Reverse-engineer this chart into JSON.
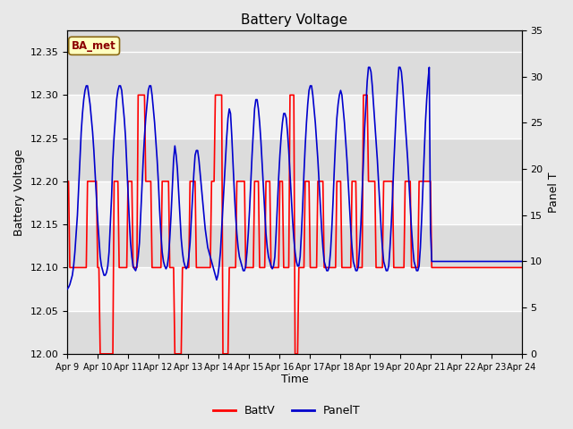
{
  "title": "Battery Voltage",
  "xlabel": "Time",
  "ylabel_left": "Battery Voltage",
  "ylabel_right": "Panel T",
  "ylim_left": [
    12.0,
    12.375
  ],
  "ylim_right": [
    0,
    35
  ],
  "yticks_left": [
    12.0,
    12.05,
    12.1,
    12.15,
    12.2,
    12.25,
    12.3,
    12.35
  ],
  "yticks_right": [
    0,
    5,
    10,
    15,
    20,
    25,
    30,
    35
  ],
  "xtick_labels": [
    "Apr 9",
    "Apr 10",
    "Apr 11",
    "Apr 12",
    "Apr 13",
    "Apr 14",
    "Apr 15",
    "Apr 16",
    "Apr 17",
    "Apr 18",
    "Apr 19",
    "Apr 20",
    "Apr 21",
    "Apr 22",
    "Apr 23",
    "Apr 24"
  ],
  "annotation_text": "BA_met",
  "annotation_color": "#8B0000",
  "annotation_bg": "#FFFFC0",
  "bg_color": "#E8E8E8",
  "plot_bg_light": "#F0F0F0",
  "plot_bg_dark": "#DCDCDC",
  "grid_color": "#FFFFFF",
  "batt_color": "#FF0000",
  "panel_color": "#0000CD",
  "legend_batt": "BattV",
  "legend_panel": "PanelT",
  "batt_v": [
    12.2,
    12.2,
    12.1,
    12.1,
    12.1,
    12.1,
    12.1,
    12.1,
    12.1,
    12.1,
    12.1,
    12.1,
    12.1,
    12.1,
    12.1,
    12.1,
    12.2,
    12.2,
    12.2,
    12.2,
    12.2,
    12.2,
    12.2,
    12.2,
    12.1,
    12.1,
    12.0,
    12.0,
    12.0,
    12.0,
    12.0,
    12.0,
    12.0,
    12.0,
    12.0,
    12.0,
    12.0,
    12.2,
    12.2,
    12.2,
    12.2,
    12.1,
    12.1,
    12.1,
    12.1,
    12.1,
    12.1,
    12.1,
    12.2,
    12.2,
    12.2,
    12.2,
    12.1,
    12.1,
    12.1,
    12.1,
    12.3,
    12.3,
    12.3,
    12.3,
    12.3,
    12.3,
    12.2,
    12.2,
    12.2,
    12.2,
    12.2,
    12.1,
    12.1,
    12.1,
    12.1,
    12.1,
    12.1,
    12.1,
    12.1,
    12.2,
    12.2,
    12.2,
    12.2,
    12.2,
    12.2,
    12.1,
    12.1,
    12.1,
    12.1,
    12.0,
    12.0,
    12.0,
    12.0,
    12.0,
    12.0,
    12.1,
    12.1,
    12.1,
    12.1,
    12.1,
    12.1,
    12.2,
    12.2,
    12.2,
    12.2,
    12.2,
    12.1,
    12.1,
    12.1,
    12.1,
    12.1,
    12.1,
    12.1,
    12.1,
    12.1,
    12.1,
    12.1,
    12.1,
    12.2,
    12.2,
    12.2,
    12.3,
    12.3,
    12.3,
    12.3,
    12.3,
    12.3,
    12.0,
    12.0,
    12.0,
    12.0,
    12.0,
    12.1,
    12.1,
    12.1,
    12.1,
    12.1,
    12.1,
    12.2,
    12.2,
    12.2,
    12.2,
    12.2,
    12.2,
    12.2,
    12.1,
    12.1,
    12.1,
    12.1,
    12.1,
    12.1,
    12.1,
    12.2,
    12.2,
    12.2,
    12.2,
    12.1,
    12.1,
    12.1,
    12.1,
    12.1,
    12.2,
    12.2,
    12.2,
    12.2,
    12.1,
    12.1,
    12.1,
    12.1,
    12.1,
    12.1,
    12.1,
    12.2,
    12.2,
    12.2,
    12.1,
    12.1,
    12.1,
    12.1,
    12.1,
    12.3,
    12.3,
    12.3,
    12.3,
    12.0,
    12.0,
    12.0,
    12.1,
    12.1,
    12.1,
    12.1,
    12.1,
    12.2,
    12.2,
    12.2,
    12.2,
    12.1,
    12.1,
    12.1,
    12.1,
    12.1,
    12.1,
    12.2,
    12.2,
    12.2,
    12.2,
    12.2,
    12.1,
    12.1,
    12.1,
    12.1,
    12.1,
    12.1,
    12.1,
    12.1,
    12.1,
    12.1,
    12.2,
    12.2,
    12.2,
    12.2,
    12.1,
    12.1,
    12.1,
    12.1,
    12.1,
    12.1,
    12.1,
    12.1,
    12.2,
    12.2,
    12.2,
    12.2,
    12.1,
    12.1,
    12.1,
    12.1,
    12.1,
    12.3,
    12.3,
    12.3,
    12.3,
    12.2,
    12.2,
    12.2,
    12.2,
    12.2,
    12.2,
    12.1,
    12.1,
    12.1,
    12.1,
    12.1,
    12.1,
    12.2,
    12.2,
    12.2,
    12.2,
    12.2,
    12.2,
    12.2,
    12.2,
    12.1,
    12.1,
    12.1,
    12.1,
    12.1,
    12.1,
    12.1,
    12.1,
    12.1,
    12.2,
    12.2,
    12.2,
    12.2,
    12.2,
    12.1,
    12.1,
    12.1,
    12.1,
    12.1,
    12.1,
    12.2,
    12.2,
    12.2,
    12.2,
    12.2,
    12.2,
    12.2,
    12.2,
    12.2,
    12.2
  ],
  "panel_t": [
    7.0,
    7.2,
    7.5,
    8.0,
    8.5,
    9.5,
    11.0,
    13.0,
    15.0,
    18.0,
    21.0,
    24.0,
    26.0,
    27.5,
    28.5,
    29.0,
    29.0,
    28.0,
    27.0,
    25.5,
    24.0,
    22.0,
    19.5,
    17.0,
    14.5,
    12.5,
    10.5,
    9.5,
    9.0,
    8.5,
    8.5,
    8.8,
    9.5,
    11.0,
    14.0,
    17.0,
    21.0,
    23.5,
    25.5,
    27.5,
    28.5,
    29.0,
    29.0,
    28.5,
    27.0,
    25.5,
    23.5,
    20.5,
    17.5,
    14.5,
    12.0,
    10.5,
    9.5,
    9.2,
    9.0,
    9.5,
    10.5,
    12.0,
    15.0,
    18.0,
    21.0,
    23.5,
    25.5,
    27.0,
    28.5,
    29.0,
    29.0,
    28.0,
    26.5,
    25.0,
    23.0,
    21.0,
    18.5,
    15.5,
    13.0,
    11.0,
    10.0,
    9.5,
    9.2,
    9.5,
    10.5,
    12.5,
    15.0,
    18.0,
    21.0,
    22.5,
    21.5,
    20.0,
    17.5,
    15.0,
    12.5,
    11.0,
    10.0,
    9.5,
    9.2,
    9.5,
    10.5,
    12.0,
    14.5,
    17.0,
    19.5,
    21.5,
    22.0,
    22.0,
    21.0,
    19.5,
    18.0,
    16.5,
    15.0,
    13.5,
    12.5,
    11.5,
    11.0,
    10.5,
    10.0,
    9.5,
    9.0,
    8.5,
    8.0,
    8.5,
    9.5,
    11.0,
    13.5,
    16.0,
    18.5,
    21.0,
    23.5,
    25.5,
    26.5,
    26.0,
    23.5,
    20.5,
    17.5,
    15.0,
    13.0,
    11.5,
    10.5,
    10.0,
    9.5,
    9.0,
    9.0,
    9.5,
    11.0,
    13.0,
    15.5,
    18.5,
    21.5,
    24.0,
    26.5,
    27.5,
    27.5,
    26.5,
    25.0,
    23.0,
    20.5,
    18.0,
    15.5,
    13.0,
    11.5,
    10.5,
    10.0,
    9.5,
    9.2,
    9.5,
    10.5,
    13.0,
    16.0,
    19.0,
    21.5,
    23.5,
    25.0,
    26.0,
    26.0,
    25.5,
    24.0,
    22.0,
    19.5,
    17.0,
    14.5,
    12.5,
    11.0,
    10.0,
    9.5,
    9.5,
    10.5,
    13.0,
    16.0,
    19.5,
    22.5,
    25.0,
    27.0,
    28.5,
    29.0,
    29.0,
    28.0,
    26.5,
    25.0,
    23.0,
    21.0,
    18.5,
    16.0,
    13.5,
    11.5,
    10.0,
    9.5,
    9.0,
    9.0,
    9.5,
    11.0,
    13.5,
    16.5,
    20.0,
    23.0,
    25.5,
    27.0,
    28.0,
    28.5,
    28.0,
    26.5,
    25.0,
    23.0,
    21.0,
    18.5,
    16.0,
    13.5,
    11.5,
    10.0,
    9.5,
    9.0,
    9.0,
    9.5,
    11.5,
    14.0,
    17.5,
    21.0,
    24.5,
    27.0,
    29.5,
    31.0,
    31.0,
    30.5,
    29.0,
    27.0,
    25.0,
    23.0,
    21.0,
    18.5,
    16.0,
    13.5,
    11.5,
    10.0,
    9.5,
    9.0,
    9.0,
    9.5,
    11.5,
    14.0,
    17.0,
    20.5,
    23.5,
    26.5,
    29.0,
    31.0,
    31.0,
    30.5,
    29.0,
    27.0,
    25.0,
    23.0,
    21.0,
    18.5,
    16.0,
    13.5,
    11.5,
    10.0,
    9.5,
    9.0,
    9.0,
    9.5,
    11.5,
    14.5,
    18.0,
    21.5,
    25.0,
    27.5,
    29.5,
    31.0,
    13.5
  ]
}
